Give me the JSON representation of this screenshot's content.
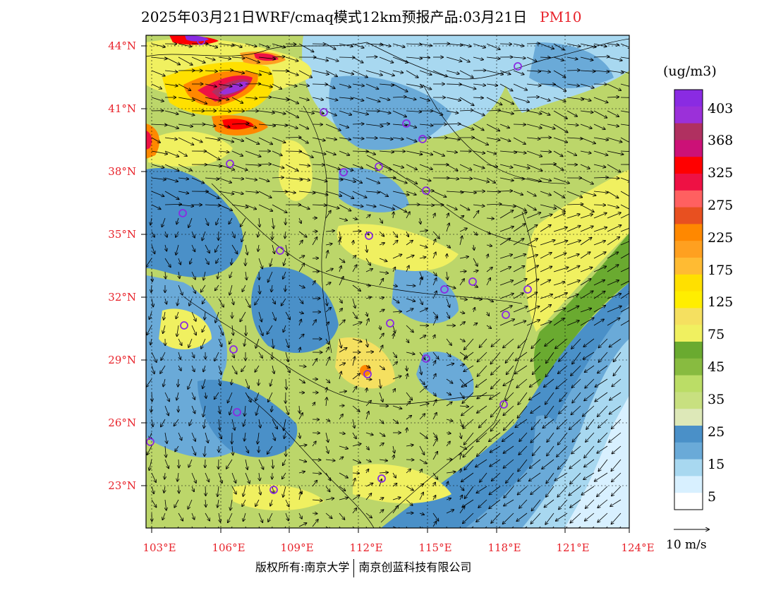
{
  "title": {
    "main": "2025年03月21日WRF/cmaq模式12km预报产品:03月21日",
    "variable": "PM10"
  },
  "map": {
    "lat_labels": [
      "44°N",
      "41°N",
      "38°N",
      "35°N",
      "32°N",
      "29°N",
      "26°N",
      "23°N"
    ],
    "lon_labels": [
      "103°E",
      "106°E",
      "109°E",
      "112°E",
      "115°E",
      "118°E",
      "121°E",
      "124°E"
    ],
    "stations": 26
  },
  "colorbar": {
    "unit": "(ug/m3)",
    "labels": [
      "403",
      "368",
      "325",
      "275",
      "225",
      "175",
      "125",
      "75",
      "45",
      "35",
      "25",
      "15",
      "5"
    ],
    "colors": [
      "#8a2be2",
      "#9b30d9",
      "#b03060",
      "#cc1177",
      "#ff0000",
      "#ee1144",
      "#ff6060",
      "#e85020",
      "#ff8800",
      "#ffa020",
      "#ffbb33",
      "#ffe000",
      "#ffee00",
      "#f5e060",
      "#f0f060",
      "#6aaa30",
      "#88bb40",
      "#bbdd66",
      "#c8e080",
      "#dde8b8",
      "#4a90c8",
      "#6aaad8",
      "#a8d8f0",
      "#d8f0ff",
      "#ffffff"
    ]
  },
  "vector_ref": "10 m/s",
  "footer": {
    "left": "版权所有:南京大学",
    "right": "南京创蓝科技有限公司"
  }
}
